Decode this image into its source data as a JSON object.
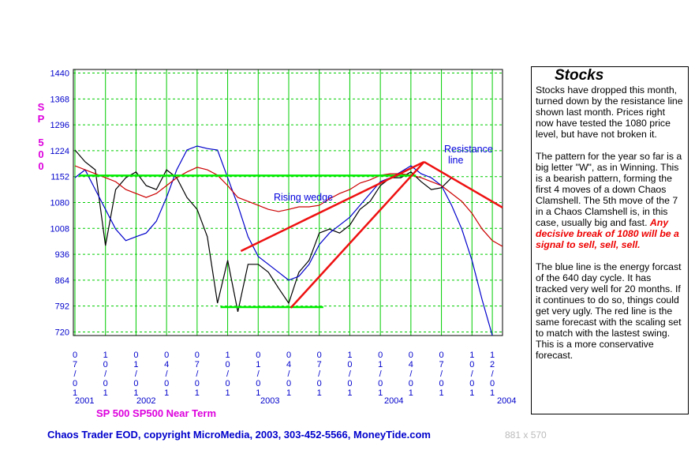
{
  "chart_data": {
    "type": "line",
    "title": "SP 500 SP500 Near Term",
    "y_label": "SP 500",
    "x": [
      0,
      1,
      2,
      3,
      4,
      5,
      6,
      7,
      8,
      9,
      10,
      11,
      12,
      13,
      14,
      15,
      16,
      17,
      18,
      19,
      20,
      21,
      22,
      23,
      24,
      25,
      26,
      27,
      28,
      29,
      30,
      31,
      32,
      33,
      34,
      35,
      36,
      37,
      38,
      39,
      40,
      41,
      42
    ],
    "series": [
      {
        "color": "#000000",
        "values": [
          1226,
          1193,
          1171,
          960,
          1116,
          1149,
          1165,
          1127,
          1116,
          1171,
          1149,
          1094,
          1061,
          985,
          800,
          919,
          776,
          908,
          908,
          886,
          842,
          800,
          886,
          919,
          995,
          1006,
          995,
          1017,
          1061,
          1083,
          1127,
          1149,
          1149,
          1165,
          1138,
          1116,
          1121,
          1149,
          null,
          null,
          null,
          null,
          null
        ]
      },
      {
        "color": "#0000cc",
        "values": [
          1149,
          1171,
          1116,
          1061,
          1006,
          974,
          985,
          995,
          1028,
          1094,
          1171,
          1226,
          1237,
          1230,
          1226,
          1149,
          1072,
          985,
          930,
          908,
          886,
          864,
          875,
          908,
          963,
          995,
          1017,
          1039,
          1072,
          1105,
          1138,
          1149,
          1165,
          1182,
          1160,
          1149,
          1127,
          1072,
          1006,
          919,
          809,
          710,
          null
        ]
      },
      {
        "color": "#cc0000",
        "values": [
          1182,
          1171,
          1160,
          1149,
          1138,
          1116,
          1105,
          1094,
          1105,
          1127,
          1149,
          1165,
          1178,
          1171,
          1156,
          1127,
          1094,
          1083,
          1072,
          1061,
          1055,
          1061,
          1068,
          1068,
          1072,
          1090,
          1105,
          1116,
          1134,
          1143,
          1156,
          1160,
          1160,
          1156,
          1149,
          1138,
          1127,
          1105,
          1083,
          1050,
          1006,
          974,
          958
        ]
      }
    ],
    "trend_lines": [
      {
        "color": "#00ee00",
        "x": [
          0.4,
          33.5
        ],
        "y": [
          1155,
          1155
        ]
      },
      {
        "color": "#00ee00",
        "x": [
          14.3,
          24.4
        ],
        "y": [
          789,
          789
        ]
      },
      {
        "color": "#ee1111",
        "x": [
          16.3,
          34.3
        ],
        "y": [
          945,
          1193
        ]
      },
      {
        "color": "#ee1111",
        "x": [
          21.2,
          34.3
        ],
        "y": [
          787,
          1193
        ]
      },
      {
        "color": "#ee1111",
        "x": [
          34.3,
          42
        ],
        "y": [
          1193,
          1066
        ]
      }
    ],
    "annotations": [
      "Rising wedge",
      "Resistance",
      "line"
    ],
    "year_labels": [
      "2001",
      "2002",
      "2003",
      "2004",
      "2004"
    ],
    "xlim": [
      0,
      42
    ],
    "ylim": [
      710,
      1450
    ],
    "xticks": [
      {
        "value": 0,
        "label": "07/01"
      },
      {
        "value": 3,
        "label": "10/01"
      },
      {
        "value": 6,
        "label": "01/01"
      },
      {
        "value": 9,
        "label": "04/01"
      },
      {
        "value": 12,
        "label": "07/01"
      },
      {
        "value": 15,
        "label": "10/01"
      },
      {
        "value": 18,
        "label": "01/01"
      },
      {
        "value": 21,
        "label": "04/01"
      },
      {
        "value": 24,
        "label": "07/01"
      },
      {
        "value": 27,
        "label": "10/01"
      },
      {
        "value": 30,
        "label": "01/01"
      },
      {
        "value": 33,
        "label": "04/01"
      },
      {
        "value": 36,
        "label": "07/01"
      },
      {
        "value": 39,
        "label": "10/01"
      },
      {
        "value": 41,
        "label": "12/01"
      }
    ],
    "yticks": [
      720,
      792,
      864,
      936,
      1008,
      1080,
      1152,
      1224,
      1296,
      1368,
      1440
    ],
    "grid": true,
    "grid_color": "#00cc00",
    "axis_label_color": "#0000cc",
    "title_color": "#dd00dd"
  },
  "footer": "Chaos Trader EOD, copyright MicroMedia, 2003, 303-452-5566, MoneyTide.com",
  "size_label": "881 x 570",
  "panel": {
    "title": "Stocks",
    "paragraphs": [
      "Stocks have dropped this month, turned down by the resistance line shown last month. Prices right now have tested the 1080 price level, but have not broken it.",
      "The pattern for the year so far is a big letter \"W\", as in Winning.  This is a bearish pattern, forming the first 4 moves of a down Chaos Clamshell.  The 5th move of the 7 in a Chaos Clamshell is, in this case, usually big and fast.",
      "The blue line is the energy forcast of the 640 day cycle. It has tracked very well for 20 months. If it continues to do so, things could get very ugly.  The red line is the same forecast with the scaling set to match with the lastest swing. This is a more conservative forecast."
    ],
    "warning": "Any decisive break of 1080 will be a signal to sell, sell, sell."
  }
}
